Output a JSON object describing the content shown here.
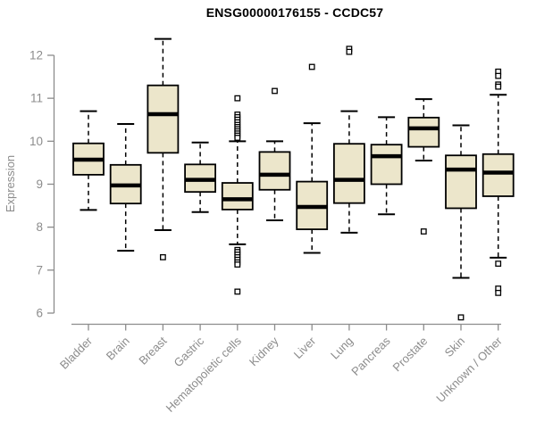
{
  "chart_data": {
    "type": "boxplot",
    "title": "ENSG00000176155 - CCDC57",
    "ylabel": "Expression",
    "yticks": [
      6,
      7,
      8,
      9,
      10,
      11,
      12
    ],
    "ylim": [
      5.8,
      12.5
    ],
    "grid": false,
    "legend": "none",
    "box_fill": "#ECE6CB",
    "box_stroke": "#000000",
    "axis_color": "#8C8C8C",
    "label_color": "#8C8C8C",
    "categories": [
      "Bladder",
      "Brain",
      "Breast",
      "Gastric",
      "Hematopoietic cells",
      "Kidney",
      "Liver",
      "Lung",
      "Pancreas",
      "Prostate",
      "Skin",
      "Unknown / Other"
    ],
    "series": [
      {
        "name": "Bladder",
        "whisker_low": 8.4,
        "q1": 9.22,
        "median": 9.57,
        "q3": 9.95,
        "whisker_high": 10.7,
        "outliers": []
      },
      {
        "name": "Brain",
        "whisker_low": 7.45,
        "q1": 8.55,
        "median": 8.97,
        "q3": 9.45,
        "whisker_high": 10.4,
        "outliers": []
      },
      {
        "name": "Breast",
        "whisker_low": 7.93,
        "q1": 9.73,
        "median": 10.63,
        "q3": 11.3,
        "whisker_high": 12.38,
        "outliers": [
          7.3
        ]
      },
      {
        "name": "Gastric",
        "whisker_low": 8.35,
        "q1": 8.82,
        "median": 9.1,
        "q3": 9.46,
        "whisker_high": 9.97,
        "outliers": []
      },
      {
        "name": "Hematopoietic cells",
        "whisker_low": 7.6,
        "q1": 8.41,
        "median": 8.65,
        "q3": 9.03,
        "whisker_high": 10.0,
        "outliers": [
          11.0,
          10.62,
          10.56,
          10.5,
          10.44,
          10.38,
          10.33,
          10.28,
          10.23,
          10.18,
          10.13,
          10.08,
          7.47,
          7.42,
          7.36,
          7.3,
          7.24,
          7.18,
          7.13,
          6.5
        ]
      },
      {
        "name": "Kidney",
        "whisker_low": 8.16,
        "q1": 8.87,
        "median": 9.22,
        "q3": 9.75,
        "whisker_high": 10.0,
        "outliers": [
          11.17
        ]
      },
      {
        "name": "Liver",
        "whisker_low": 7.4,
        "q1": 7.95,
        "median": 8.47,
        "q3": 9.06,
        "whisker_high": 10.42,
        "outliers": [
          11.73
        ]
      },
      {
        "name": "Lung",
        "whisker_low": 7.87,
        "q1": 8.56,
        "median": 9.1,
        "q3": 9.94,
        "whisker_high": 10.7,
        "outliers": [
          12.15,
          12.08
        ]
      },
      {
        "name": "Pancreas",
        "whisker_low": 8.3,
        "q1": 9.0,
        "median": 9.65,
        "q3": 9.92,
        "whisker_high": 10.56,
        "outliers": []
      },
      {
        "name": "Prostate",
        "whisker_low": 9.55,
        "q1": 9.87,
        "median": 10.3,
        "q3": 10.55,
        "whisker_high": 10.98,
        "outliers": [
          7.9
        ]
      },
      {
        "name": "Skin",
        "whisker_low": 6.82,
        "q1": 8.44,
        "median": 9.34,
        "q3": 9.67,
        "whisker_high": 10.37,
        "outliers": [
          5.9
        ]
      },
      {
        "name": "Unknown / Other",
        "whisker_low": 7.29,
        "q1": 8.72,
        "median": 9.27,
        "q3": 9.7,
        "whisker_high": 11.08,
        "outliers": [
          11.62,
          11.52,
          11.32,
          11.27,
          7.15,
          6.57,
          6.47
        ]
      }
    ]
  }
}
